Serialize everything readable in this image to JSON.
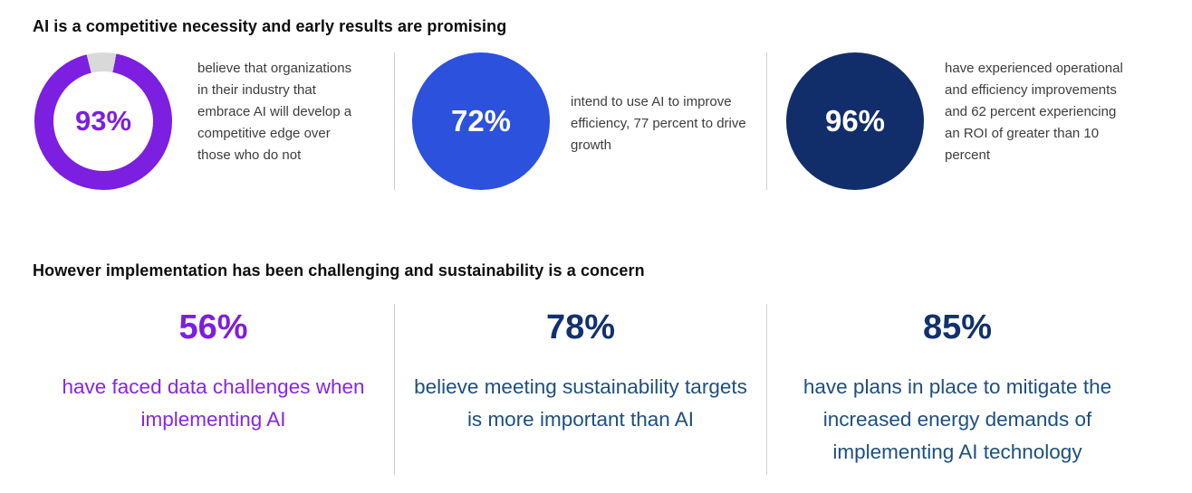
{
  "colors": {
    "purple": "#7c1fe0",
    "purple_text": "#8527e2",
    "royal_blue": "#2b51dd",
    "navy": "#122e6a",
    "navy_number": "#12316d",
    "steel_text": "#1d4f7f",
    "donut_gap": "#d9d9d9",
    "divider": "#cfcfcf",
    "heading_text": "#0d0d0d",
    "body_text": "#3d3d3d"
  },
  "section_top": {
    "heading": "AI is a competitive necessity and early results are promising",
    "stats": [
      {
        "value": "93%",
        "visual": "donut-ring",
        "percent": 93,
        "description": "believe that organizations in their industry that embrace AI will develop a competitive edge over those who do not"
      },
      {
        "value": "72%",
        "visual": "solid-circle",
        "percent": 72,
        "description": "intend to use AI to improve efficiency, 77 percent to drive growth"
      },
      {
        "value": "96%",
        "visual": "solid-circle",
        "percent": 96,
        "description": "have experienced operational and efficiency improvements and 62 percent experiencing an ROI of greater than 10 percent"
      }
    ]
  },
  "section_bottom": {
    "heading": "However implementation has been challenging and sustainability is a concern",
    "stats": [
      {
        "value": "56%",
        "description": "have faced data challenges when implementing AI"
      },
      {
        "value": "78%",
        "description": "believe meeting sustainability targets is more important than AI"
      },
      {
        "value": "85%",
        "description": "have plans in place to mitigate the increased energy demands of implementing AI technology"
      }
    ]
  },
  "chart_data": [
    {
      "type": "pie",
      "title": "AI is a competitive necessity and early results are promising",
      "series": [
        {
          "name": "believe that organizations in their industry that embrace AI will develop a competitive edge over those who do not",
          "value": 93
        },
        {
          "name": "intend to use AI to improve efficiency",
          "value": 72
        },
        {
          "name": "intend to use AI to drive growth",
          "value": 77
        },
        {
          "name": "have experienced operational and efficiency improvements",
          "value": 96
        },
        {
          "name": "experiencing an ROI of greater than 10 percent",
          "value": 62
        }
      ],
      "notes": "93% rendered as purple donut ring with 7% gray remainder at top; 72% and 96% rendered as solid filled circles with white labels"
    },
    {
      "type": "table",
      "title": "However implementation has been challenging and sustainability is a concern",
      "categories": [
        "have faced data challenges when implementing AI",
        "believe meeting sustainability targets is more important than AI",
        "have plans in place to mitigate the increased energy demands of implementing AI technology"
      ],
      "values": [
        56,
        78,
        85
      ]
    }
  ]
}
